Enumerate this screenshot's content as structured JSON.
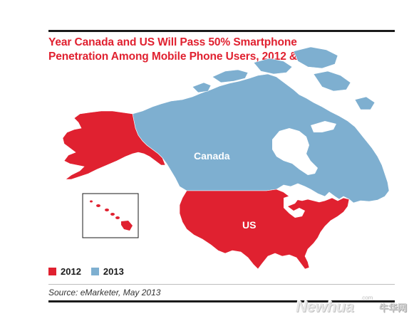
{
  "title_line1": "Year Canada and US Will Pass 50% Smartphone",
  "title_line2": "Penetration Among Mobile Phone Users, 2012 & 2013",
  "regions": {
    "canada": {
      "label": "Canada",
      "year": "2013"
    },
    "us": {
      "label": "US",
      "year": "2012"
    },
    "alaska": {
      "year": "2012"
    },
    "hawaii": {
      "year": "2012"
    }
  },
  "legend": [
    {
      "label": "2012",
      "color": "#e02130"
    },
    {
      "label": "2013",
      "color": "#7eafd0"
    }
  ],
  "source": "Source: eMarketer, May 2013",
  "watermark": {
    "brand": "Newhua",
    "domain_suffix": ".com",
    "chinese": "牛华网"
  },
  "colors": {
    "title": "#e02130",
    "red_2012": "#e02130",
    "blue_2013": "#7eafd0",
    "ocean_lines": "#ffffff"
  }
}
